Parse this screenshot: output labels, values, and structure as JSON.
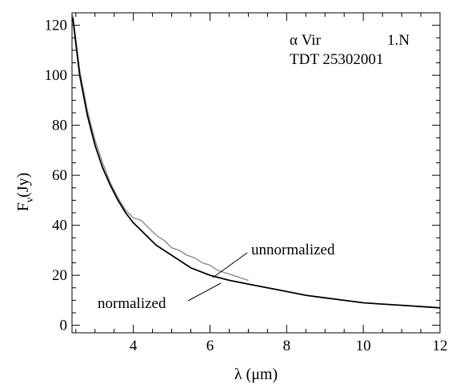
{
  "chart_data": {
    "type": "line",
    "xlabel": "λ (μm)",
    "ylabel": "Fν(Jy)",
    "ylabel_main": "F",
    "ylabel_sub": "ν",
    "ylabel_rest": "(Jy)",
    "xlim": [
      2.4,
      12
    ],
    "ylim": [
      -3,
      125
    ],
    "x_ticks": [
      4,
      6,
      8,
      10,
      12
    ],
    "x_tick_labels": [
      "4",
      "6",
      "8",
      "10",
      "12"
    ],
    "y_ticks": [
      0,
      20,
      40,
      60,
      80,
      100,
      120
    ],
    "y_tick_labels": [
      "0",
      "20",
      "40",
      "60",
      "80",
      "100",
      "120"
    ],
    "grid": false,
    "annotations": {
      "star": "α Vir",
      "aot": "1.N",
      "tdt": "TDT 25302001",
      "unnormalized": "unnormalized",
      "normalized": "normalized"
    },
    "series": [
      {
        "name": "unnormalized",
        "color": "#8c8c8c",
        "x": [
          2.42,
          2.6,
          2.8,
          3.0,
          3.2,
          3.4,
          3.6,
          3.8,
          4.0,
          4.2,
          4.4,
          4.6,
          4.8,
          5.0,
          5.2,
          5.4,
          5.6,
          5.8,
          6.0,
          6.2,
          6.4,
          6.6,
          6.8,
          7.0
        ],
        "y": [
          124,
          102,
          86,
          74,
          65,
          57,
          51,
          46,
          43,
          42,
          39,
          36,
          34,
          31,
          30,
          28,
          27,
          25,
          24,
          22,
          21,
          20,
          19,
          18
        ]
      },
      {
        "name": "normalized",
        "color": "#000000",
        "x": [
          2.42,
          2.6,
          2.8,
          3.0,
          3.2,
          3.4,
          3.6,
          3.8,
          4.0,
          4.2,
          4.4,
          4.6,
          4.8,
          5.0,
          5.5,
          6.0,
          6.5,
          7.0,
          7.5,
          8.0,
          8.5,
          9.0,
          9.5,
          10.0,
          10.5,
          11.0,
          11.5,
          12.0
        ],
        "y": [
          123,
          100,
          84,
          72,
          63,
          56,
          50,
          45,
          41,
          38,
          35,
          32,
          30,
          28,
          23,
          20,
          18,
          16.5,
          15,
          13.5,
          12,
          11,
          10,
          9,
          8.5,
          8,
          7.5,
          7
        ]
      }
    ]
  }
}
